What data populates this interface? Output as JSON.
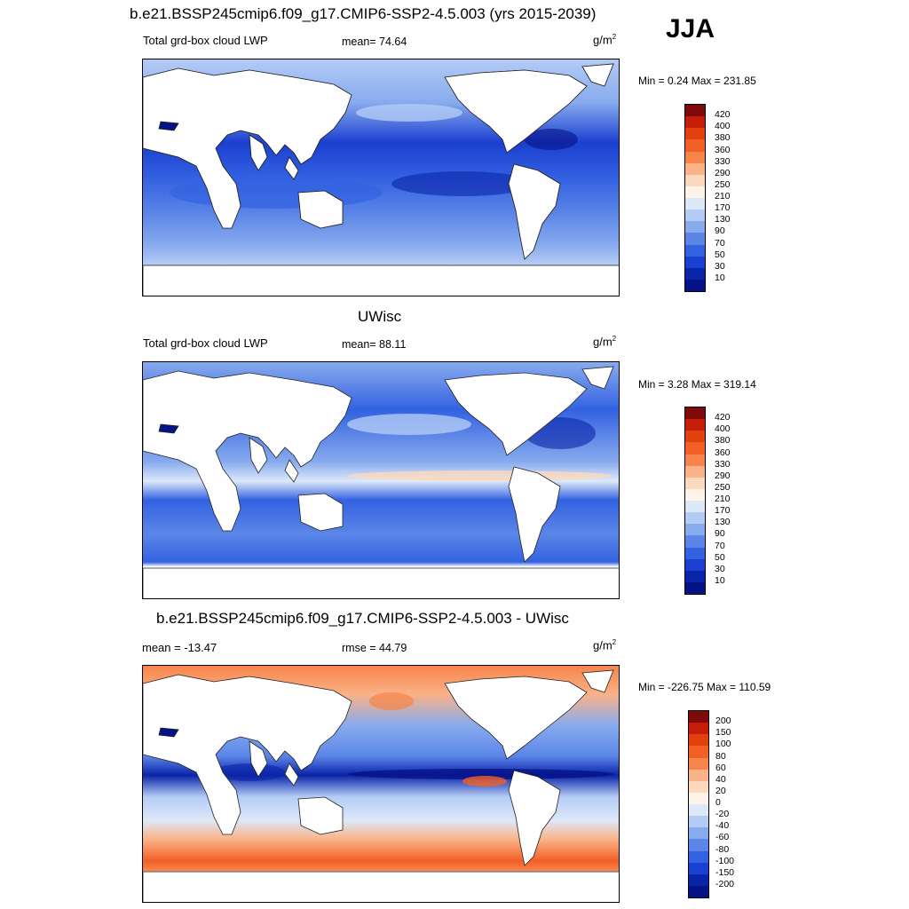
{
  "main_title": "b.e21.BSSP245cmip6.f09_g17.CMIP6-SSP2-4.5.003 (yrs 2015-2039)",
  "season": "JJA",
  "colors": {
    "land": "#ffffff",
    "ocean_base": "#3a66e0",
    "coast": "#222222",
    "border": "#000000"
  },
  "panels": [
    {
      "id": "model",
      "field_label": "Total grd-box cloud LWP",
      "stat_text": "mean=  74.64",
      "units": "g/m",
      "units_exp": "2",
      "minmax": "Min =   0.24 Max = 231.85"
    },
    {
      "id": "obs",
      "section_title": "UWisc",
      "field_label": "Total grd-box cloud LWP",
      "stat_text": "mean=  88.11",
      "units": "g/m",
      "units_exp": "2",
      "minmax": "Min =   3.28 Max = 319.14"
    },
    {
      "id": "diff",
      "section_title": "b.e21.BSSP245cmip6.f09_g17.CMIP6-SSP2-4.5.003 - UWisc",
      "mean_text": "mean = -13.47",
      "rmse_text": "rmse =  44.79",
      "units": "g/m",
      "units_exp": "2",
      "minmax": "Min = -226.75 Max = 110.59"
    }
  ],
  "colorbar_lwp": {
    "levels": [
      "420",
      "400",
      "380",
      "360",
      "330",
      "290",
      "250",
      "210",
      "170",
      "130",
      "90",
      "70",
      "50",
      "30",
      "10"
    ],
    "colors": [
      "#7f0a0a",
      "#c41e08",
      "#e2400f",
      "#f26025",
      "#f7844a",
      "#fab287",
      "#fcd9bd",
      "#fdf3e9",
      "#dde9f9",
      "#b3cbf5",
      "#88abee",
      "#5b86e8",
      "#3362e1",
      "#1b3fd0",
      "#0a24a8",
      "#061387"
    ]
  },
  "colorbar_diff": {
    "levels": [
      "200",
      "150",
      "100",
      "80",
      "60",
      "40",
      "20",
      "0",
      "-20",
      "-40",
      "-60",
      "-80",
      "-100",
      "-150",
      "-200"
    ],
    "colors": [
      "#7f0a0a",
      "#c41e08",
      "#e2400f",
      "#f26025",
      "#f7844a",
      "#fab287",
      "#fcd9bd",
      "#fdf3e9",
      "#dde9f9",
      "#b3cbf5",
      "#88abee",
      "#5b86e8",
      "#3362e1",
      "#1b3fd0",
      "#0a24a8",
      "#061387"
    ]
  }
}
